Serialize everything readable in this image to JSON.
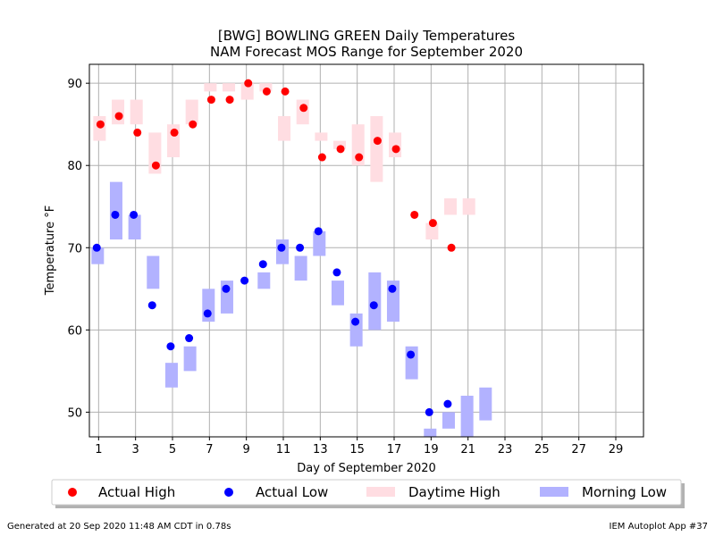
{
  "chart_data": {
    "type": "range-scatter",
    "title": "[BWG] BOWLING GREEN Daily Temperatures",
    "subtitle": "NAM Forecast MOS Range for September 2020",
    "xlabel": "Day of September 2020",
    "ylabel": "Temperature °F",
    "xlim": [
      0.5,
      30.5
    ],
    "ylim": [
      47,
      92.3
    ],
    "xticks": [
      1,
      3,
      5,
      7,
      9,
      11,
      13,
      15,
      17,
      19,
      21,
      23,
      25,
      27,
      29
    ],
    "yticks": [
      50,
      60,
      70,
      80,
      90
    ],
    "grid": true,
    "legend_position": "bottom",
    "colors": {
      "actual_high": "#ff0000",
      "actual_low": "#0000ff",
      "daytime_high": "#ffdde2",
      "morning_low": "#b2b2ff"
    },
    "legend": {
      "actual_high": "Actual High",
      "actual_low": "Actual Low",
      "daytime_high": "Daytime High",
      "morning_low": "Morning Low"
    },
    "actual_high": [
      [
        1,
        85
      ],
      [
        2,
        86
      ],
      [
        3,
        84
      ],
      [
        4,
        80
      ],
      [
        5,
        84
      ],
      [
        6,
        85
      ],
      [
        7,
        88
      ],
      [
        8,
        88
      ],
      [
        9,
        90
      ],
      [
        10,
        89
      ],
      [
        11,
        89
      ],
      [
        12,
        87
      ],
      [
        13,
        81
      ],
      [
        14,
        82
      ],
      [
        15,
        81
      ],
      [
        16,
        83
      ],
      [
        17,
        82
      ],
      [
        18,
        74
      ],
      [
        19,
        73
      ],
      [
        20,
        70
      ]
    ],
    "actual_low": [
      [
        1,
        70
      ],
      [
        2,
        74
      ],
      [
        3,
        74
      ],
      [
        4,
        63
      ],
      [
        5,
        58
      ],
      [
        6,
        59
      ],
      [
        7,
        62
      ],
      [
        8,
        65
      ],
      [
        9,
        66
      ],
      [
        10,
        68
      ],
      [
        11,
        70
      ],
      [
        12,
        70
      ],
      [
        13,
        72
      ],
      [
        14,
        67
      ],
      [
        15,
        61
      ],
      [
        16,
        63
      ],
      [
        17,
        65
      ],
      [
        18,
        57
      ],
      [
        19,
        50
      ],
      [
        20,
        51
      ]
    ],
    "daytime_high_range": [
      [
        1,
        83,
        86
      ],
      [
        2,
        85,
        88
      ],
      [
        3,
        85,
        88
      ],
      [
        4,
        79,
        84
      ],
      [
        5,
        81,
        85
      ],
      [
        6,
        85,
        88
      ],
      [
        7,
        89,
        90
      ],
      [
        8,
        89,
        90
      ],
      [
        9,
        88,
        90
      ],
      [
        10,
        89,
        90
      ],
      [
        11,
        83,
        86
      ],
      [
        12,
        85,
        88
      ],
      [
        13,
        83,
        84
      ],
      [
        14,
        82,
        83
      ],
      [
        15,
        80,
        85
      ],
      [
        16,
        78,
        86
      ],
      [
        17,
        81,
        84
      ],
      [
        19,
        71,
        73
      ],
      [
        20,
        74,
        76
      ],
      [
        21,
        74,
        76
      ]
    ],
    "morning_low_range": [
      [
        1,
        68,
        70
      ],
      [
        2,
        71,
        78
      ],
      [
        3,
        71,
        74
      ],
      [
        4,
        65,
        69
      ],
      [
        5,
        53,
        56
      ],
      [
        6,
        55,
        58
      ],
      [
        7,
        61,
        65
      ],
      [
        8,
        62,
        66
      ],
      [
        10,
        65,
        67
      ],
      [
        11,
        68,
        71
      ],
      [
        12,
        66,
        69
      ],
      [
        13,
        69,
        72
      ],
      [
        14,
        63,
        66
      ],
      [
        15,
        58,
        62
      ],
      [
        16,
        60,
        67
      ],
      [
        17,
        61,
        66
      ],
      [
        18,
        54,
        58
      ],
      [
        19,
        45,
        48
      ],
      [
        20,
        48,
        50
      ],
      [
        21,
        45,
        52
      ],
      [
        22,
        49,
        53
      ]
    ]
  },
  "footer": {
    "left": "Generated at 20 Sep 2020 11:48 AM CDT in 0.78s",
    "right": "IEM Autoplot App #37"
  }
}
